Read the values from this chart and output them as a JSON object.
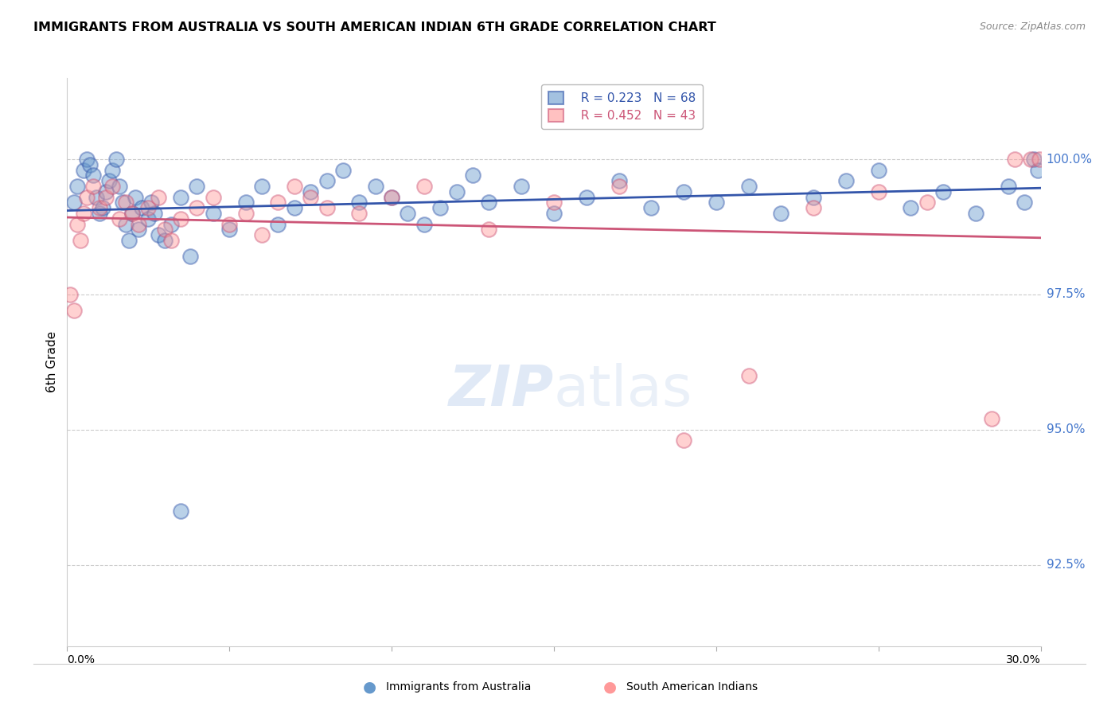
{
  "title": "IMMIGRANTS FROM AUSTRALIA VS SOUTH AMERICAN INDIAN 6TH GRADE CORRELATION CHART",
  "source": "Source: ZipAtlas.com",
  "ylabel": "6th Grade",
  "y_ticks": [
    92.5,
    95.0,
    97.5,
    100.0
  ],
  "y_tick_labels": [
    "92.5%",
    "95.0%",
    "97.5%",
    "100.0%"
  ],
  "x_range": [
    0.0,
    30.0
  ],
  "y_range": [
    91.0,
    101.5
  ],
  "legend_blue_r": "R = 0.223",
  "legend_blue_n": "N = 68",
  "legend_pink_r": "R = 0.452",
  "legend_pink_n": "N = 43",
  "blue_color": "#6699CC",
  "pink_color": "#FF9999",
  "blue_line_color": "#3355AA",
  "pink_line_color": "#CC5577",
  "blue_scatter_x": [
    0.2,
    0.3,
    0.5,
    0.6,
    0.7,
    0.8,
    0.9,
    1.0,
    1.1,
    1.2,
    1.3,
    1.4,
    1.5,
    1.6,
    1.7,
    1.8,
    1.9,
    2.0,
    2.1,
    2.2,
    2.3,
    2.5,
    2.6,
    2.7,
    2.8,
    3.0,
    3.2,
    3.5,
    3.8,
    4.0,
    4.5,
    5.0,
    5.5,
    6.0,
    6.5,
    7.0,
    7.5,
    8.0,
    8.5,
    9.0,
    9.5,
    10.0,
    10.5,
    11.0,
    11.5,
    12.0,
    12.5,
    13.0,
    14.0,
    15.0,
    16.0,
    17.0,
    18.0,
    19.0,
    20.0,
    21.0,
    22.0,
    23.0,
    24.0,
    25.0,
    26.0,
    27.0,
    28.0,
    29.0,
    29.5,
    29.8,
    29.9,
    3.5
  ],
  "blue_scatter_y": [
    99.2,
    99.5,
    99.8,
    100.0,
    99.9,
    99.7,
    99.3,
    99.0,
    99.1,
    99.4,
    99.6,
    99.8,
    100.0,
    99.5,
    99.2,
    98.8,
    98.5,
    99.0,
    99.3,
    98.7,
    99.1,
    98.9,
    99.2,
    99.0,
    98.6,
    98.5,
    98.8,
    99.3,
    98.2,
    99.5,
    99.0,
    98.7,
    99.2,
    99.5,
    98.8,
    99.1,
    99.4,
    99.6,
    99.8,
    99.2,
    99.5,
    99.3,
    99.0,
    98.8,
    99.1,
    99.4,
    99.7,
    99.2,
    99.5,
    99.0,
    99.3,
    99.6,
    99.1,
    99.4,
    99.2,
    99.5,
    99.0,
    99.3,
    99.6,
    99.8,
    99.1,
    99.4,
    99.0,
    99.5,
    99.2,
    100.0,
    99.8,
    93.5
  ],
  "pink_scatter_x": [
    0.1,
    0.2,
    0.3,
    0.4,
    0.5,
    0.6,
    0.8,
    1.0,
    1.2,
    1.4,
    1.6,
    1.8,
    2.0,
    2.2,
    2.5,
    2.8,
    3.0,
    3.2,
    3.5,
    4.0,
    4.5,
    5.0,
    5.5,
    6.0,
    6.5,
    7.0,
    7.5,
    8.0,
    9.0,
    10.0,
    11.0,
    13.0,
    15.0,
    17.0,
    19.0,
    21.0,
    23.0,
    25.0,
    26.5,
    28.5,
    29.2,
    29.7,
    29.95
  ],
  "pink_scatter_y": [
    97.5,
    97.2,
    98.8,
    98.5,
    99.0,
    99.3,
    99.5,
    99.1,
    99.3,
    99.5,
    98.9,
    99.2,
    99.0,
    98.8,
    99.1,
    99.3,
    98.7,
    98.5,
    98.9,
    99.1,
    99.3,
    98.8,
    99.0,
    98.6,
    99.2,
    99.5,
    99.3,
    99.1,
    99.0,
    99.3,
    99.5,
    98.7,
    99.2,
    99.5,
    94.8,
    96.0,
    99.1,
    99.4,
    99.2,
    95.2,
    100.0,
    100.0,
    100.0
  ]
}
